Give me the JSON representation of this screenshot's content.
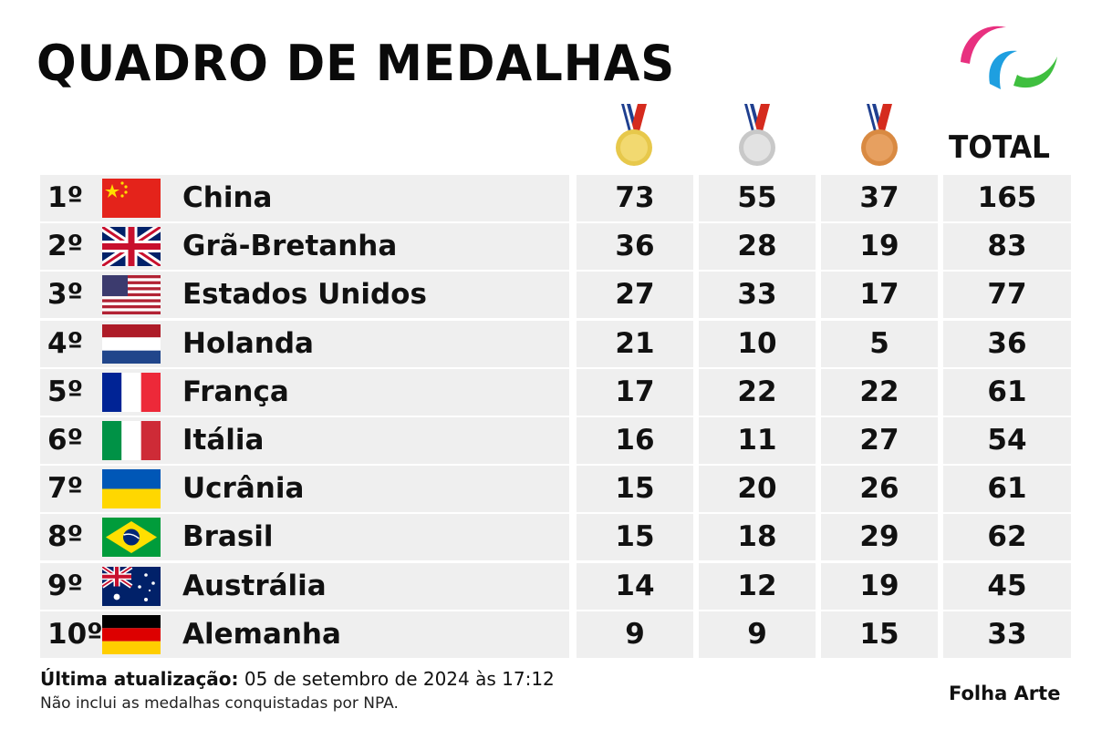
{
  "title": "QUADRO DE MEDALHAS",
  "logo_icon": "paralympic-agitos-icon",
  "colors": {
    "row_band": "#efefef",
    "gold": "#e7c84b",
    "silver": "#d0d0d0",
    "bronze": "#d98a42",
    "ribbon_red": "#d52b1e",
    "ribbon_blue": "#1f3f8f",
    "agitos_red": "#e8307f",
    "agitos_blue": "#1e9fe0",
    "agitos_green": "#3fbf3f"
  },
  "columns": {
    "gold_icon": "gold-medal-icon",
    "silver_icon": "silver-medal-icon",
    "bronze_icon": "bronze-medal-icon",
    "total": "TOTAL"
  },
  "table": [
    {
      "rank": "1º",
      "country": "China",
      "flag_icon": "china-flag-icon",
      "gold": "73",
      "silver": "55",
      "bronze": "37",
      "total": "165"
    },
    {
      "rank": "2º",
      "country": "Grã-Bretanha",
      "flag_icon": "uk-flag-icon",
      "gold": "36",
      "silver": "28",
      "bronze": "19",
      "total": "83"
    },
    {
      "rank": "3º",
      "country": "Estados Unidos",
      "flag_icon": "usa-flag-icon",
      "gold": "27",
      "silver": "33",
      "bronze": "17",
      "total": "77"
    },
    {
      "rank": "4º",
      "country": "Holanda",
      "flag_icon": "netherlands-flag-icon",
      "gold": "21",
      "silver": "10",
      "bronze": "5",
      "total": "36"
    },
    {
      "rank": "5º",
      "country": "França",
      "flag_icon": "france-flag-icon",
      "gold": "17",
      "silver": "22",
      "bronze": "22",
      "total": "61"
    },
    {
      "rank": "6º",
      "country": "Itália",
      "flag_icon": "italy-flag-icon",
      "gold": "16",
      "silver": "11",
      "bronze": "27",
      "total": "54"
    },
    {
      "rank": "7º",
      "country": "Ucrânia",
      "flag_icon": "ukraine-flag-icon",
      "gold": "15",
      "silver": "20",
      "bronze": "26",
      "total": "61"
    },
    {
      "rank": "8º",
      "country": "Brasil",
      "flag_icon": "brazil-flag-icon",
      "gold": "15",
      "silver": "18",
      "bronze": "29",
      "total": "62"
    },
    {
      "rank": "9º",
      "country": "Austrália",
      "flag_icon": "australia-flag-icon",
      "gold": "14",
      "silver": "12",
      "bronze": "19",
      "total": "45"
    },
    {
      "rank": "10º",
      "country": "Alemanha",
      "flag_icon": "germany-flag-icon",
      "gold": "9",
      "silver": "9",
      "bronze": "15",
      "total": "33"
    }
  ],
  "footer": {
    "update_label": "Última atualização:",
    "update_value": " 05 de setembro de 2024 às 17:12",
    "note": "Não inclui as medalhas conquistadas por NPA.",
    "credit": "Folha Arte"
  }
}
